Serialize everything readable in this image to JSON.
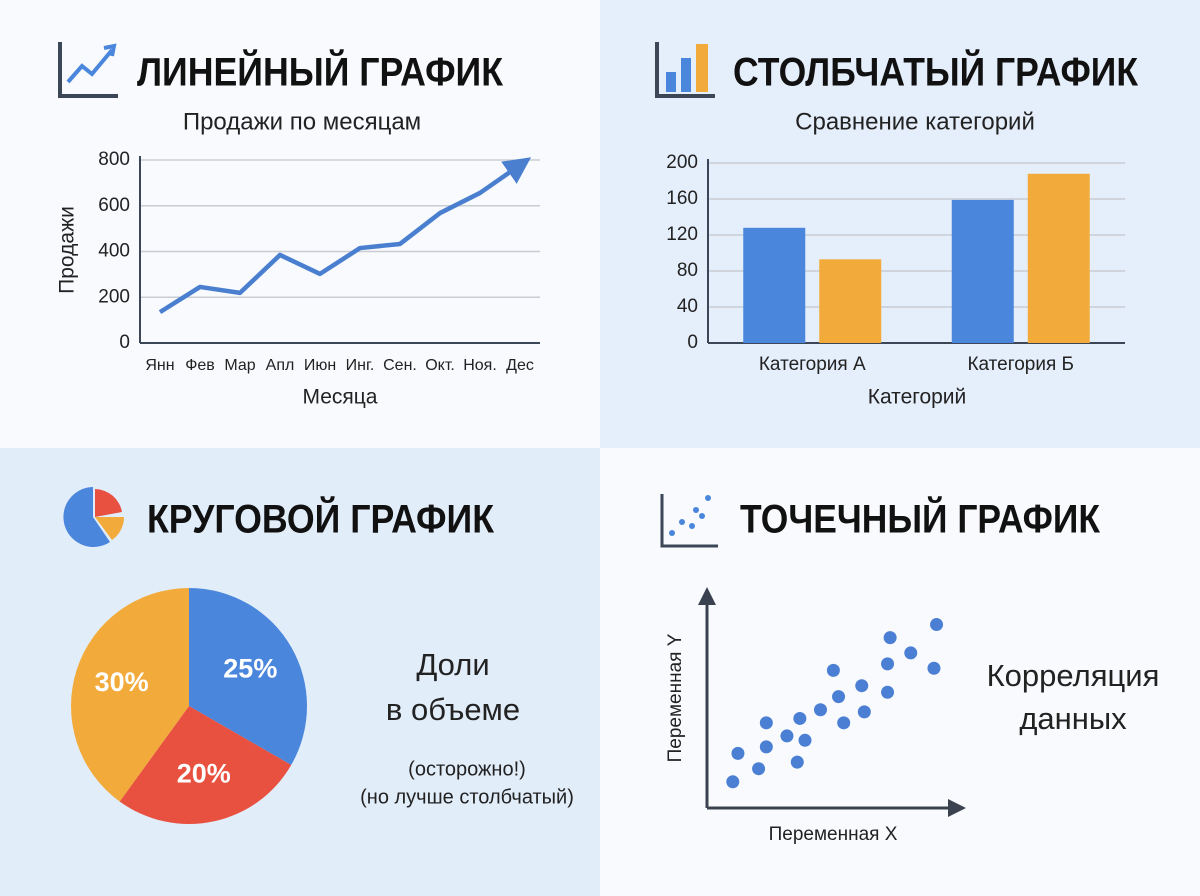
{
  "chart_data": [
    {
      "type": "line",
      "heading": "ЛИНЕЙНЫЙ ГРАФИК",
      "title": "Продажи по месяцам",
      "xlabel": "Месяца",
      "ylabel": "Продажи",
      "categories": [
        "Янн",
        "Фев",
        "Мар",
        "Апл",
        "Июн",
        "Инг.",
        "Сен.",
        "Окт.",
        "Ноя.",
        "Дес"
      ],
      "values": [
        135,
        245,
        219,
        385,
        302,
        415,
        433,
        568,
        656,
        778
      ],
      "color": "#4a7fd0",
      "ylim": [
        0,
        800
      ],
      "yticks": [
        0,
        200,
        400,
        600,
        800
      ],
      "grid": true
    },
    {
      "type": "bar",
      "heading": "СТОЛБЧАТЫЙ ГРАФИК",
      "title": "Сравнение категорий",
      "xlabel": "Категорий",
      "categories": [
        "Категория А",
        "Категория Б"
      ],
      "series": [
        {
          "color": "#4a86dc",
          "values": [
            128,
            159
          ]
        },
        {
          "color": "#f2ab3a",
          "values": [
            93,
            188
          ]
        }
      ],
      "ylim": [
        0,
        200
      ],
      "yticks": [
        0,
        40,
        80,
        120,
        160,
        200
      ],
      "grid": true
    },
    {
      "type": "pie",
      "heading": "КРУГОВОЙ ГРАФИК",
      "values": [
        25,
        20,
        30
      ],
      "value_labels": [
        "25%",
        "20%",
        "30%"
      ],
      "colors": [
        "#4a86dc",
        "#e8503f",
        "#f2ab3a"
      ],
      "annotation": [
        "Доли",
        "в объеме"
      ],
      "note": [
        "(осторожно!)",
        "(но лучше столбчатый)"
      ]
    },
    {
      "type": "scatter",
      "heading": "ТОЧЕЧНЫЙ ГРАФИК",
      "xlabel": "Переменная X",
      "ylabel": "Переменная Y",
      "color": "#4a7fd4",
      "x": [
        1.0,
        1.2,
        2.0,
        2.3,
        2.3,
        3.1,
        3.5,
        3.6,
        3.8,
        4.4,
        4.9,
        5.1,
        5.3,
        6.0,
        6.1,
        7.0,
        7.0,
        7.1,
        7.9,
        8.8,
        8.9
      ],
      "y": [
        1.2,
        2.5,
        1.8,
        2.8,
        3.9,
        3.3,
        2.1,
        4.1,
        3.1,
        4.5,
        6.3,
        5.1,
        3.9,
        5.6,
        4.4,
        5.3,
        6.6,
        7.8,
        7.1,
        6.4,
        8.4
      ],
      "xlim": [
        0,
        10
      ],
      "ylim": [
        0,
        10
      ],
      "annotation": [
        "Корреляция",
        "данных"
      ]
    }
  ]
}
